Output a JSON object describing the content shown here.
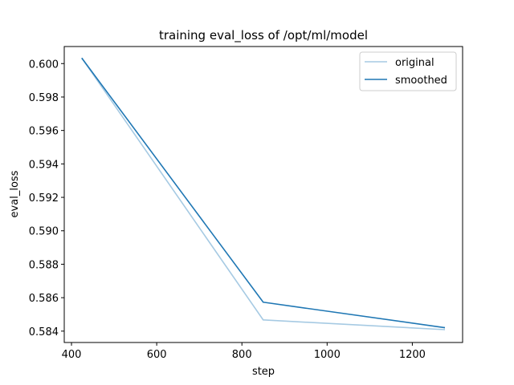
{
  "chart_data": {
    "type": "line",
    "title": "training eval_loss of /opt/ml/model",
    "xlabel": "step",
    "ylabel": "eval_loss",
    "xlim": [
      383,
      1318
    ],
    "ylim": [
      0.58332,
      0.60102
    ],
    "xticks": [
      400,
      600,
      800,
      1000,
      1200
    ],
    "yticks": [
      0.584,
      0.586,
      0.588,
      0.59,
      0.592,
      0.594,
      0.596,
      0.598,
      0.6
    ],
    "grid": false,
    "legend": "top-right",
    "series": [
      {
        "name": "original",
        "color": "#a6cae3",
        "x": [
          425,
          850,
          1275
        ],
        "y": [
          0.6003,
          0.58467,
          0.58409
        ]
      },
      {
        "name": "smoothed",
        "color": "#1f77b4",
        "x": [
          425,
          850,
          1275
        ],
        "y": [
          0.6003,
          0.58573,
          0.58421
        ]
      }
    ]
  }
}
